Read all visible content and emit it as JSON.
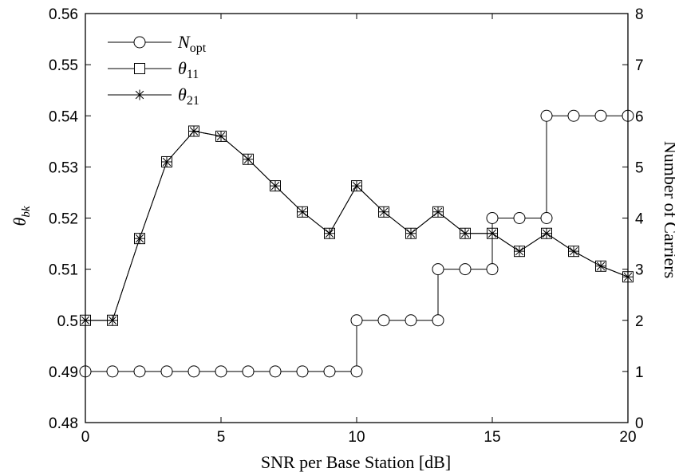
{
  "chart_data": {
    "type": "line",
    "title": "",
    "xlabel": "SNR per Base Station [dB]",
    "ylabel_left": {
      "main": "θ",
      "sub": "bk"
    },
    "ylabel_right": "Number of Carriers",
    "xlim": [
      0,
      20
    ],
    "ylim_left": [
      0.48,
      0.56
    ],
    "ylim_right": [
      0,
      8
    ],
    "xticks": [
      0,
      5,
      10,
      15,
      20
    ],
    "xtick_labels": [
      "0",
      "5",
      "10",
      "15",
      "20"
    ],
    "yticks_left": [
      0.48,
      0.49,
      0.5,
      0.51,
      0.52,
      0.53,
      0.54,
      0.55,
      0.56
    ],
    "ytick_labels_left": [
      "0.48",
      "0.49",
      "0.5",
      "0.51",
      "0.52",
      "0.53",
      "0.54",
      "0.55",
      "0.56"
    ],
    "yticks_right": [
      0,
      1,
      2,
      3,
      4,
      5,
      6,
      7,
      8
    ],
    "ytick_labels_right": [
      "0",
      "1",
      "2",
      "3",
      "4",
      "5",
      "6",
      "7",
      "8"
    ],
    "grid": false,
    "legend_position": "top-left",
    "x": [
      0,
      1,
      2,
      3,
      4,
      5,
      6,
      7,
      8,
      9,
      10,
      11,
      12,
      13,
      14,
      15,
      16,
      17,
      18,
      19,
      20
    ],
    "series": [
      {
        "name": {
          "main": "N",
          "sub": "opt"
        },
        "axis": "right",
        "marker": "circle",
        "step": true,
        "values": [
          1,
          1,
          1,
          1,
          1,
          1,
          1,
          1,
          1,
          1,
          1,
          2,
          2,
          2,
          3,
          3,
          4,
          4,
          6,
          6,
          6
        ],
        "step_points": [
          [
            0,
            1
          ],
          [
            10,
            1
          ],
          [
            10,
            2
          ],
          [
            13,
            2
          ],
          [
            13,
            3
          ],
          [
            15,
            3
          ],
          [
            15,
            4
          ],
          [
            17,
            4
          ],
          [
            17,
            6
          ],
          [
            20,
            6
          ]
        ],
        "marker_points": [
          [
            0,
            1
          ],
          [
            1,
            1
          ],
          [
            2,
            1
          ],
          [
            3,
            1
          ],
          [
            4,
            1
          ],
          [
            5,
            1
          ],
          [
            6,
            1
          ],
          [
            7,
            1
          ],
          [
            8,
            1
          ],
          [
            9,
            1
          ],
          [
            10,
            1
          ],
          [
            10,
            2
          ],
          [
            11,
            2
          ],
          [
            12,
            2
          ],
          [
            13,
            2
          ],
          [
            13,
            3
          ],
          [
            14,
            3
          ],
          [
            15,
            3
          ],
          [
            15,
            4
          ],
          [
            16,
            4
          ],
          [
            17,
            4
          ],
          [
            17,
            6
          ],
          [
            18,
            6
          ],
          [
            19,
            6
          ],
          [
            20,
            6
          ]
        ]
      },
      {
        "name": {
          "main": "θ",
          "sub": "11"
        },
        "axis": "left",
        "marker": "square",
        "step": false,
        "values": [
          0.5,
          0.5,
          0.516,
          0.531,
          0.537,
          0.536,
          0.5315,
          0.5263,
          0.5212,
          0.517,
          0.5263,
          0.5212,
          0.517,
          0.5212,
          0.517,
          0.517,
          0.5135,
          0.517,
          0.5135,
          0.5106,
          0.5085
        ]
      },
      {
        "name": {
          "main": "θ",
          "sub": "21"
        },
        "axis": "left",
        "marker": "asterisk",
        "step": false,
        "values": [
          0.5,
          0.5,
          0.516,
          0.531,
          0.537,
          0.536,
          0.5315,
          0.5263,
          0.5212,
          0.517,
          0.5263,
          0.5212,
          0.517,
          0.5212,
          0.517,
          0.517,
          0.5135,
          0.517,
          0.5135,
          0.5106,
          0.5085
        ]
      }
    ]
  }
}
